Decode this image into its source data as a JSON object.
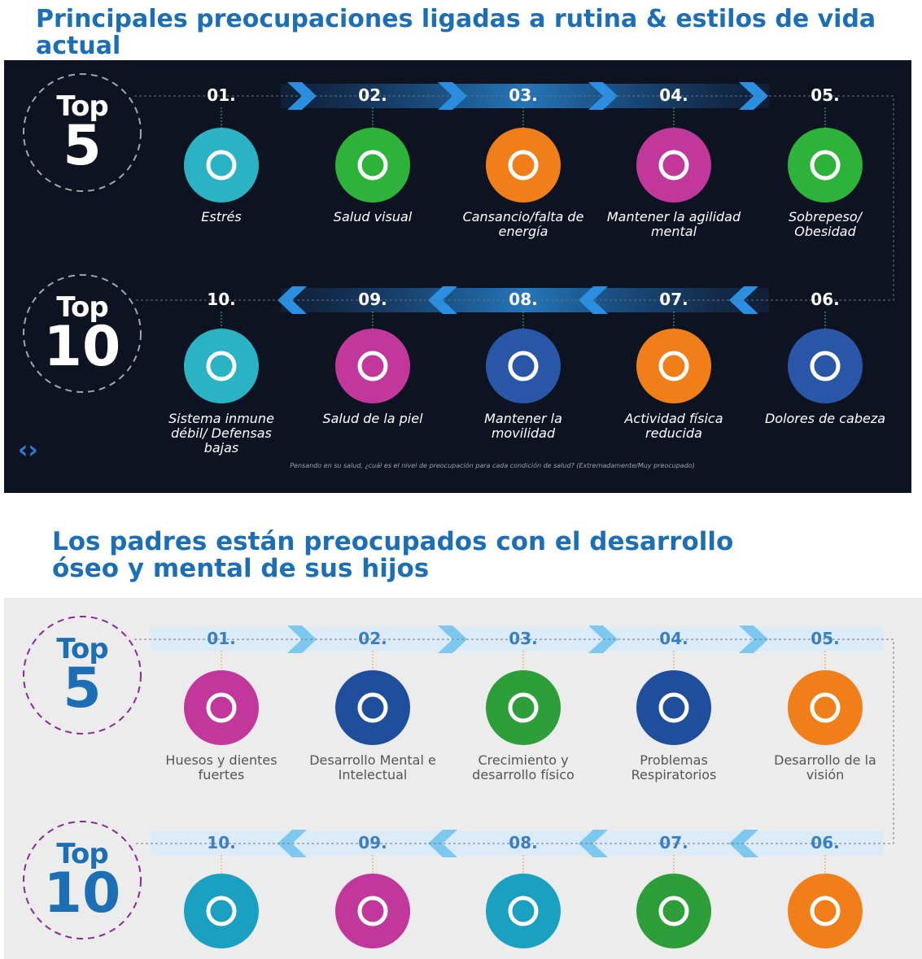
{
  "sections": [
    {
      "title": "Principales preocupaciones ligadas a rutina & estilos de vida actual",
      "badges": [
        {
          "top": "Top",
          "rank": "5"
        },
        {
          "top": "Top",
          "rank": "10"
        }
      ],
      "items": [
        {
          "number": "01.",
          "label": "Estrés"
        },
        {
          "number": "02.",
          "label": "Salud visual"
        },
        {
          "number": "03.",
          "label": "Cansancio/falta de energía"
        },
        {
          "number": "04.",
          "label": "Mantener la agilidad mental"
        },
        {
          "number": "05.",
          "label": "Sobrepeso/ Obesidad"
        },
        {
          "number": "06.",
          "label": "Dolores de cabeza"
        },
        {
          "number": "07.",
          "label": "Actividad física reducida"
        },
        {
          "number": "08.",
          "label": "Mantener la movilidad"
        },
        {
          "number": "09.",
          "label": "Salud de la piel"
        },
        {
          "number": "10.",
          "label": "Sistema inmune débil/ Defensas bajas"
        }
      ],
      "footnote": "Pensando en su salud, ¿cuál es el nivel de preocupación para cada condición de salud? (Extremadamente/Muy preocupado)"
    },
    {
      "title": "Los padres están preocupados con el desarrollo óseo y mental de sus hijos",
      "badges": [
        {
          "top": "Top",
          "rank": "5"
        },
        {
          "top": "Top",
          "rank": "10"
        }
      ],
      "items": [
        {
          "number": "01.",
          "label": "Huesos y dientes fuertes"
        },
        {
          "number": "02.",
          "label": "Desarrollo Mental e Intelectual"
        },
        {
          "number": "03.",
          "label": "Crecimiento y desarrollo físico"
        },
        {
          "number": "04.",
          "label": "Problemas Respiratorios"
        },
        {
          "number": "05.",
          "label": "Desarrollo de la visión"
        },
        {
          "number": "06."
        },
        {
          "number": "07."
        },
        {
          "number": "08."
        },
        {
          "number": "09."
        },
        {
          "number": "10."
        }
      ]
    }
  ]
}
